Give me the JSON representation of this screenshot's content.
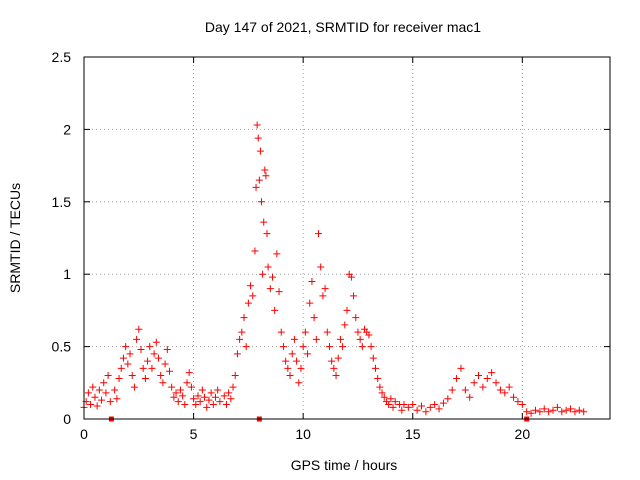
{
  "chart_data": {
    "type": "scatter",
    "title": "Day 147 of 2021, SRMTID for receiver mac1",
    "xlabel": "GPS time / hours",
    "ylabel": "SRMTID / TECUs",
    "xlim": [
      0,
      24
    ],
    "ylim": [
      0,
      2.5
    ],
    "grid": true,
    "marker": "+",
    "color": "#ff0000",
    "x_ticks": [
      0,
      5,
      10,
      15,
      20
    ],
    "x_tick_labels": [
      "0",
      "5",
      "10",
      "15",
      "20"
    ],
    "y_ticks": [
      0,
      0.5,
      1,
      1.5,
      2,
      2.5
    ],
    "y_tick_labels": [
      "0",
      "0.5",
      "1",
      "1.5",
      "2",
      "2.5"
    ],
    "gap_markers_x": [
      1.25,
      8.0,
      20.2
    ],
    "series": [
      {
        "name": "SRMTID",
        "points": [
          [
            0.0,
            0.08
          ],
          [
            0.1,
            0.12
          ],
          [
            0.2,
            0.18
          ],
          [
            0.3,
            0.1
          ],
          [
            0.4,
            0.22
          ],
          [
            0.5,
            0.15
          ],
          [
            0.6,
            0.09
          ],
          [
            0.7,
            0.2
          ],
          [
            0.8,
            0.13
          ],
          [
            0.9,
            0.25
          ],
          [
            1.0,
            0.18
          ],
          [
            1.1,
            0.3
          ],
          [
            1.2,
            0.12
          ],
          [
            1.4,
            0.2
          ],
          [
            1.5,
            0.14
          ],
          [
            1.6,
            0.28
          ],
          [
            1.7,
            0.35
          ],
          [
            1.8,
            0.42
          ],
          [
            1.9,
            0.5
          ],
          [
            2.0,
            0.38
          ],
          [
            2.1,
            0.45
          ],
          [
            2.2,
            0.3
          ],
          [
            2.3,
            0.22
          ],
          [
            2.4,
            0.55
          ],
          [
            2.5,
            0.62
          ],
          [
            2.6,
            0.48
          ],
          [
            2.7,
            0.35
          ],
          [
            2.8,
            0.28
          ],
          [
            2.9,
            0.4
          ],
          [
            3.0,
            0.5
          ],
          [
            3.1,
            0.35
          ],
          [
            3.2,
            0.45
          ],
          [
            3.3,
            0.53
          ],
          [
            3.4,
            0.42
          ],
          [
            3.5,
            0.3
          ],
          [
            3.6,
            0.25
          ],
          [
            3.7,
            0.38
          ],
          [
            3.8,
            0.48
          ],
          [
            3.9,
            0.33
          ],
          [
            4.0,
            0.22
          ],
          [
            4.1,
            0.15
          ],
          [
            4.2,
            0.18
          ],
          [
            4.3,
            0.12
          ],
          [
            4.4,
            0.2
          ],
          [
            4.5,
            0.16
          ],
          [
            4.6,
            0.1
          ],
          [
            4.7,
            0.25
          ],
          [
            4.8,
            0.32
          ],
          [
            4.9,
            0.22
          ],
          [
            5.0,
            0.14
          ],
          [
            5.1,
            0.1
          ],
          [
            5.2,
            0.16
          ],
          [
            5.3,
            0.12
          ],
          [
            5.4,
            0.2
          ],
          [
            5.5,
            0.15
          ],
          [
            5.6,
            0.08
          ],
          [
            5.7,
            0.13
          ],
          [
            5.8,
            0.18
          ],
          [
            5.9,
            0.1
          ],
          [
            6.0,
            0.15
          ],
          [
            6.1,
            0.2
          ],
          [
            6.2,
            0.12
          ],
          [
            6.4,
            0.16
          ],
          [
            6.5,
            0.1
          ],
          [
            6.6,
            0.18
          ],
          [
            6.7,
            0.14
          ],
          [
            6.8,
            0.22
          ],
          [
            6.9,
            0.3
          ],
          [
            7.0,
            0.45
          ],
          [
            7.1,
            0.55
          ],
          [
            7.2,
            0.6
          ],
          [
            7.3,
            0.7
          ],
          [
            7.4,
            0.5
          ],
          [
            7.5,
            0.8
          ],
          [
            7.6,
            0.92
          ],
          [
            7.7,
            0.85
          ],
          [
            7.8,
            1.16
          ],
          [
            7.85,
            1.6
          ],
          [
            7.9,
            2.03
          ],
          [
            7.95,
            1.94
          ],
          [
            8.0,
            1.65
          ],
          [
            8.05,
            1.85
          ],
          [
            8.1,
            1.5
          ],
          [
            8.15,
            1.0
          ],
          [
            8.2,
            1.36
          ],
          [
            8.25,
            1.72
          ],
          [
            8.3,
            1.68
          ],
          [
            8.35,
            1.28
          ],
          [
            8.4,
            1.05
          ],
          [
            8.5,
            0.9
          ],
          [
            8.6,
            0.98
          ],
          [
            8.7,
            0.75
          ],
          [
            8.8,
            1.14
          ],
          [
            8.9,
            0.88
          ],
          [
            9.0,
            0.6
          ],
          [
            9.1,
            0.5
          ],
          [
            9.2,
            0.4
          ],
          [
            9.3,
            0.35
          ],
          [
            9.4,
            0.3
          ],
          [
            9.5,
            0.45
          ],
          [
            9.6,
            0.55
          ],
          [
            9.7,
            0.4
          ],
          [
            9.8,
            0.25
          ],
          [
            9.9,
            0.35
          ],
          [
            10.0,
            0.5
          ],
          [
            10.1,
            0.6
          ],
          [
            10.2,
            0.45
          ],
          [
            10.3,
            0.8
          ],
          [
            10.4,
            0.95
          ],
          [
            10.5,
            0.7
          ],
          [
            10.6,
            0.55
          ],
          [
            10.7,
            1.28
          ],
          [
            10.8,
            1.05
          ],
          [
            10.9,
            0.85
          ],
          [
            11.0,
            0.9
          ],
          [
            11.1,
            0.6
          ],
          [
            11.2,
            0.5
          ],
          [
            11.3,
            0.4
          ],
          [
            11.4,
            0.35
          ],
          [
            11.5,
            0.3
          ],
          [
            11.6,
            0.42
          ],
          [
            11.7,
            0.55
          ],
          [
            11.8,
            0.5
          ],
          [
            11.9,
            0.65
          ],
          [
            12.0,
            0.75
          ],
          [
            12.1,
            1.0
          ],
          [
            12.2,
            0.98
          ],
          [
            12.3,
            0.85
          ],
          [
            12.4,
            0.7
          ],
          [
            12.5,
            0.6
          ],
          [
            12.6,
            0.55
          ],
          [
            12.7,
            0.5
          ],
          [
            12.8,
            0.62
          ],
          [
            12.9,
            0.6
          ],
          [
            13.0,
            0.58
          ],
          [
            13.1,
            0.5
          ],
          [
            13.2,
            0.42
          ],
          [
            13.3,
            0.35
          ],
          [
            13.4,
            0.28
          ],
          [
            13.5,
            0.22
          ],
          [
            13.6,
            0.18
          ],
          [
            13.7,
            0.15
          ],
          [
            13.8,
            0.12
          ],
          [
            13.9,
            0.1
          ],
          [
            14.0,
            0.14
          ],
          [
            14.1,
            0.08
          ],
          [
            14.2,
            0.12
          ],
          [
            14.4,
            0.1
          ],
          [
            14.5,
            0.06
          ],
          [
            14.6,
            0.1
          ],
          [
            14.8,
            0.08
          ],
          [
            15.0,
            0.1
          ],
          [
            15.2,
            0.06
          ],
          [
            15.4,
            0.09
          ],
          [
            15.6,
            0.05
          ],
          [
            15.8,
            0.08
          ],
          [
            16.0,
            0.1
          ],
          [
            16.2,
            0.07
          ],
          [
            16.4,
            0.11
          ],
          [
            16.6,
            0.14
          ],
          [
            16.8,
            0.2
          ],
          [
            17.0,
            0.28
          ],
          [
            17.2,
            0.35
          ],
          [
            17.4,
            0.2
          ],
          [
            17.6,
            0.15
          ],
          [
            17.8,
            0.25
          ],
          [
            18.0,
            0.3
          ],
          [
            18.2,
            0.22
          ],
          [
            18.4,
            0.28
          ],
          [
            18.6,
            0.32
          ],
          [
            18.8,
            0.25
          ],
          [
            19.0,
            0.2
          ],
          [
            19.2,
            0.18
          ],
          [
            19.4,
            0.22
          ],
          [
            19.6,
            0.15
          ],
          [
            19.8,
            0.12
          ],
          [
            20.0,
            0.1
          ],
          [
            20.2,
            0.05
          ],
          [
            20.4,
            0.04
          ],
          [
            20.6,
            0.06
          ],
          [
            20.8,
            0.05
          ],
          [
            21.0,
            0.07
          ],
          [
            21.2,
            0.05
          ],
          [
            21.4,
            0.06
          ],
          [
            21.6,
            0.08
          ],
          [
            21.8,
            0.05
          ],
          [
            22.0,
            0.06
          ],
          [
            22.2,
            0.07
          ],
          [
            22.4,
            0.05
          ],
          [
            22.6,
            0.06
          ],
          [
            22.8,
            0.05
          ]
        ]
      }
    ]
  }
}
